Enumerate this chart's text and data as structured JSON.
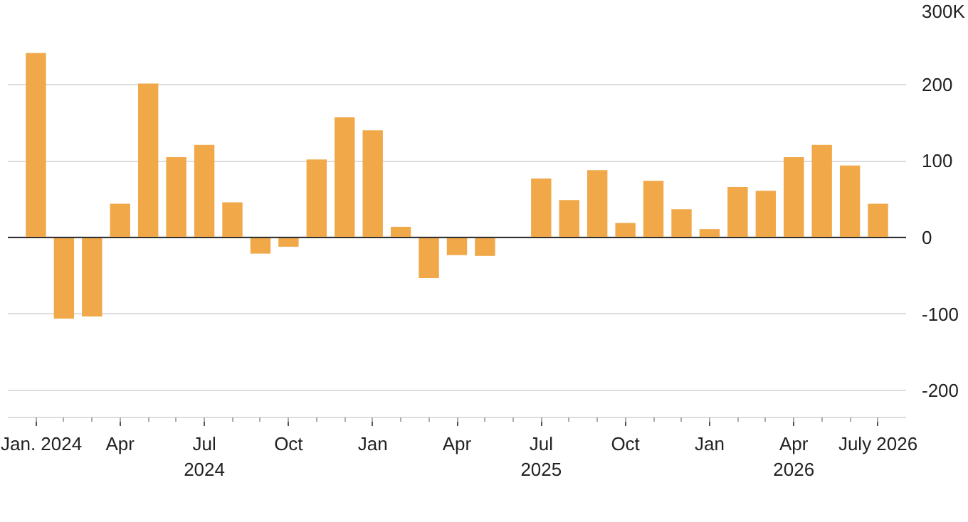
{
  "chart_data": {
    "type": "bar",
    "x": [
      "2024-01",
      "2024-02",
      "2024-03",
      "2024-04",
      "2024-05",
      "2024-06",
      "2024-07",
      "2024-08",
      "2024-09",
      "2024-10",
      "2024-11",
      "2024-12",
      "2025-01",
      "2025-02",
      "2025-03",
      "2025-04",
      "2025-05",
      "2025-06",
      "2025-07",
      "2025-08",
      "2025-09",
      "2025-10",
      "2025-11",
      "2025-12",
      "2026-01",
      "2026-02",
      "2026-03",
      "2026-04",
      "2026-05",
      "2026-06",
      "2026-07"
    ],
    "values": [
      241,
      -106,
      -103,
      44,
      201,
      105,
      121,
      46,
      -21,
      -12,
      102,
      157,
      140,
      14,
      -53,
      -23,
      -24,
      null,
      77,
      49,
      88,
      19,
      74,
      37,
      11,
      66,
      61,
      105,
      121,
      94,
      44
    ],
    "color": "#f0a848",
    "xlim": [
      "2023-12",
      "2026-08"
    ],
    "xticks": [
      {
        "value": "2024-01",
        "label": "Jan. 2024"
      },
      {
        "value": "2024-04",
        "label": "Apr"
      },
      {
        "value": "2024-07",
        "label": "Jul\n2024"
      },
      {
        "value": "2024-10",
        "label": "Oct"
      },
      {
        "value": "2025-01",
        "label": "Jan"
      },
      {
        "value": "2025-04",
        "label": "Apr"
      },
      {
        "value": "2025-07",
        "label": "Jul\n2025"
      },
      {
        "value": "2025-10",
        "label": "Oct"
      },
      {
        "value": "2026-01",
        "label": "Jan"
      },
      {
        "value": "2026-04",
        "label": "Apr\n2026"
      },
      {
        "value": "2026-07",
        "label": "July 2026"
      }
    ],
    "ylim": [
      -235,
      300
    ],
    "yticks": [
      -200,
      -100,
      0,
      100,
      200,
      {
        "value": 300,
        "label": "300K"
      }
    ],
    "grid": "y",
    "ref_lines": [
      {
        "axis": "y",
        "value": 0,
        "color": "#333333"
      }
    ]
  }
}
